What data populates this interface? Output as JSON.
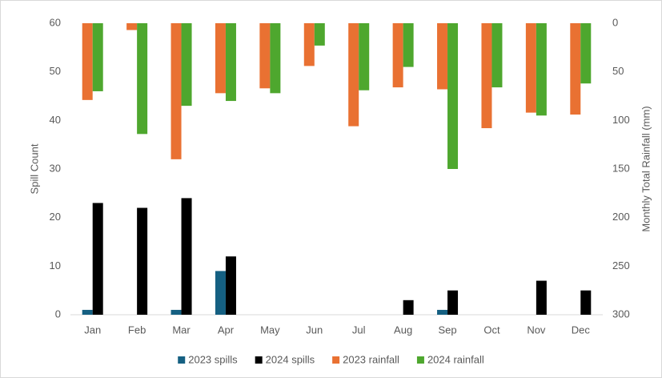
{
  "chart_data": {
    "type": "bar",
    "y_label": "Spill Count",
    "y2_label": "Monthly Total Rainfall (mm)",
    "categories": [
      "Jan",
      "Feb",
      "Mar",
      "Apr",
      "May",
      "Jun",
      "Jul",
      "Aug",
      "Sep",
      "Oct",
      "Nov",
      "Dec"
    ],
    "series": [
      {
        "name": "2023 spills",
        "color": "#156082",
        "values": [
          1,
          0,
          1,
          9,
          0,
          0,
          0,
          0,
          1,
          0,
          0,
          0
        ]
      },
      {
        "name": "2024 spills",
        "color": "#000000",
        "values": [
          23,
          22,
          24,
          12,
          0,
          0,
          0,
          3,
          5,
          0,
          7,
          5
        ]
      },
      {
        "name": "2023 rainfall",
        "color": "#e97132",
        "axis": "y2",
        "values": [
          79,
          7,
          140,
          72,
          67,
          44,
          106,
          66,
          68,
          108,
          92,
          94
        ]
      },
      {
        "name": "2024 rainfall",
        "color": "#4ea72e",
        "axis": "y2",
        "values": [
          70,
          114,
          85,
          80,
          72,
          23,
          69,
          45,
          150,
          66,
          95,
          62
        ]
      }
    ],
    "ylim": [
      0,
      60
    ],
    "yticks": [
      0,
      10,
      20,
      30,
      40,
      50,
      60
    ],
    "y2lim": [
      300,
      0
    ],
    "y2ticks": [
      0,
      50,
      100,
      150,
      200,
      250,
      300
    ],
    "legend": "bottom",
    "grid": false
  }
}
